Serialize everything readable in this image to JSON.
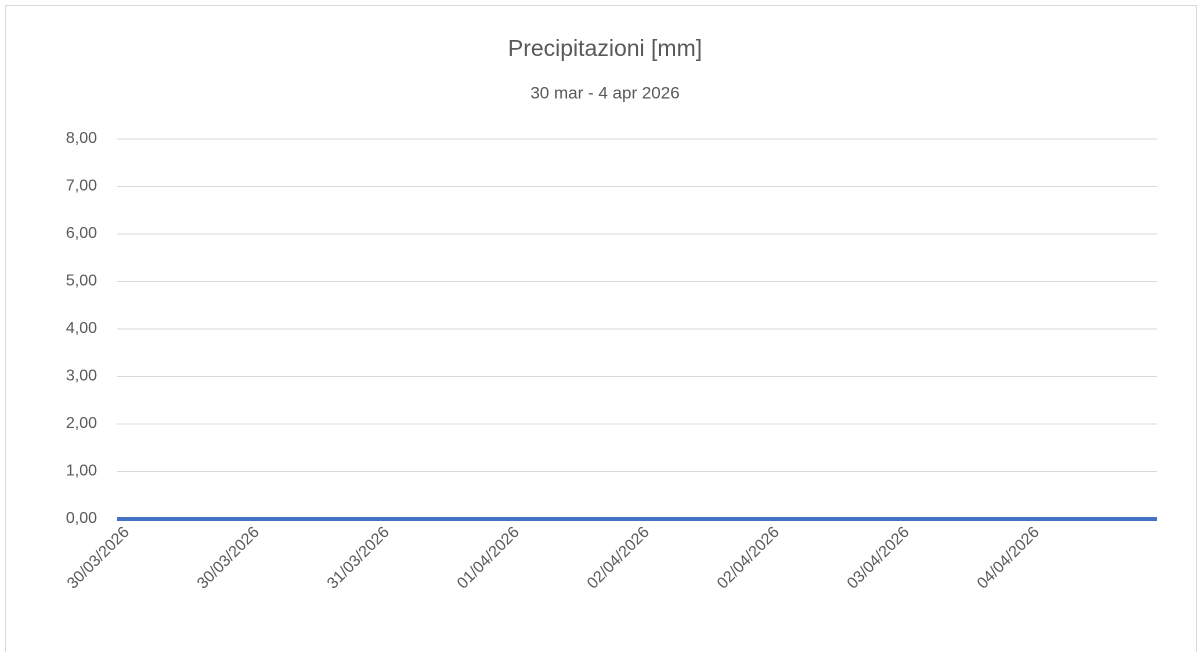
{
  "chart_data": {
    "type": "line",
    "title": "Precipitazioni [mm]",
    "subtitle": "30 mar  - 4 apr 2026",
    "categories": [
      "30/03/2026",
      "30/03/2026",
      "31/03/2026",
      "01/04/2026",
      "02/04/2026",
      "02/04/2026",
      "03/04/2026",
      "04/04/2026",
      null
    ],
    "series": [
      {
        "color": "#4472c4",
        "values": [
          0,
          0,
          0,
          0,
          0,
          0,
          0,
          0,
          0
        ]
      }
    ],
    "ylim": [
      0,
      8
    ],
    "yticks": [
      {
        "value": 0,
        "label": "0,00"
      },
      {
        "value": 1,
        "label": "1,00"
      },
      {
        "value": 2,
        "label": "2,00"
      },
      {
        "value": 3,
        "label": "3,00"
      },
      {
        "value": 4,
        "label": "4,00"
      },
      {
        "value": 5,
        "label": "5,00"
      },
      {
        "value": 6,
        "label": "6,00"
      },
      {
        "value": 7,
        "label": "7,00"
      },
      {
        "value": 8,
        "label": "8,00"
      }
    ],
    "grid": true
  }
}
